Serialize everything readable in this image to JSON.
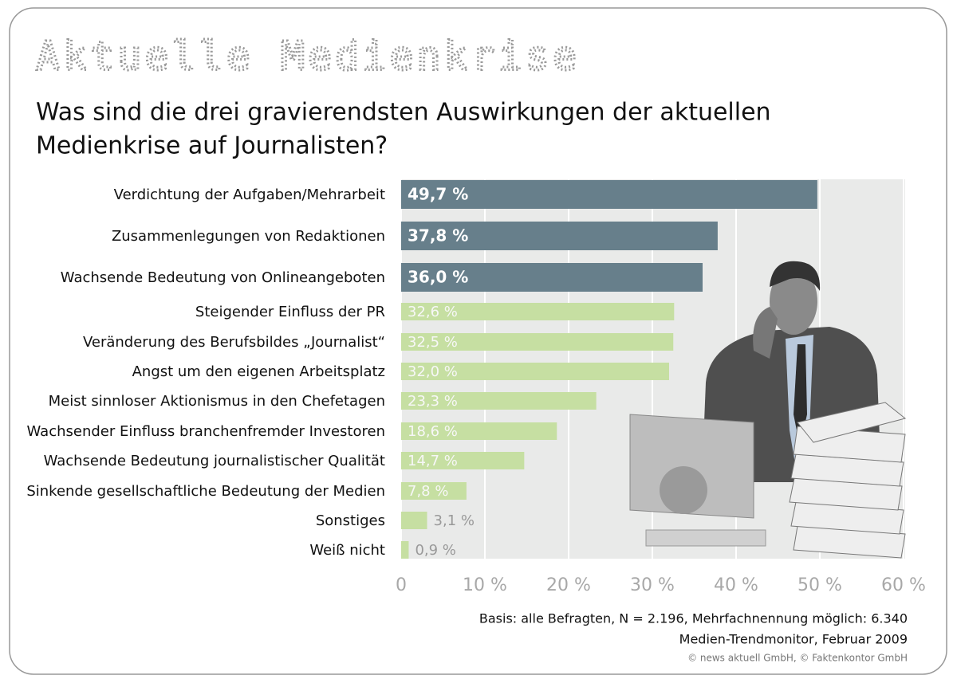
{
  "chart_data": {
    "type": "bar",
    "orientation": "horizontal",
    "title": "Aktuelle Medienkrise",
    "subtitle": [
      "Was sind die drei gravierendsten Auswirkungen der aktuellen",
      "Medienkrise auf Journalisten?"
    ],
    "categories": [
      "Verdichtung der Aufgaben/Mehrarbeit",
      "Zusammenlegungen von Redaktionen",
      "Wachsende Bedeutung von Onlineangeboten",
      "Steigender Einfluss der PR",
      "Veränderung des Berufsbildes „Journalist“",
      "Angst um den eigenen Arbeitsplatz",
      "Meist sinnloser Aktionismus in den Chefetagen",
      "Wachsender Einfluss branchenfremder Investoren",
      "Wachsende Bedeutung journalistischer Qualität",
      "Sinkende gesellschaftliche Bedeutung der Medien",
      "Sonstiges",
      "Weiß nicht"
    ],
    "values": [
      49.7,
      37.8,
      36.0,
      32.6,
      32.5,
      32.0,
      23.3,
      18.6,
      14.7,
      7.8,
      3.1,
      0.9
    ],
    "value_labels": [
      "49,7 %",
      "37,8 %",
      "36,0 %",
      "32,6 %",
      "32,5 %",
      "32,0 %",
      "23,3 %",
      "18,6 %",
      "14,7 %",
      "7,8 %",
      "3,1 %",
      "0,9 %"
    ],
    "colors": [
      "#677f8b",
      "#677f8b",
      "#677f8b",
      "#c6dfa2",
      "#c6dfa2",
      "#c6dfa2",
      "#c6dfa2",
      "#c6dfa2",
      "#c6dfa2",
      "#c6dfa2",
      "#c6dfa2",
      "#c6dfa2"
    ],
    "xlim": [
      0,
      60
    ],
    "xticks": [
      0,
      {
        "value": 10,
        "label": "10 %"
      },
      {
        "value": 20,
        "label": "20 %"
      },
      {
        "value": 30,
        "label": "30 %"
      },
      {
        "value": 40,
        "label": "40 %"
      },
      {
        "value": 50,
        "label": "50 %"
      },
      {
        "value": 60,
        "label": "60 %"
      }
    ],
    "grid": true,
    "footnotes": [
      "Basis: alle Befragten, N = 2.196, Mehrfachnennung möglich: 6.340",
      "Medien-Trendmonitor, Februar 2009",
      "© news aktuell GmbH, © Faktenkontor GmbH"
    ]
  }
}
